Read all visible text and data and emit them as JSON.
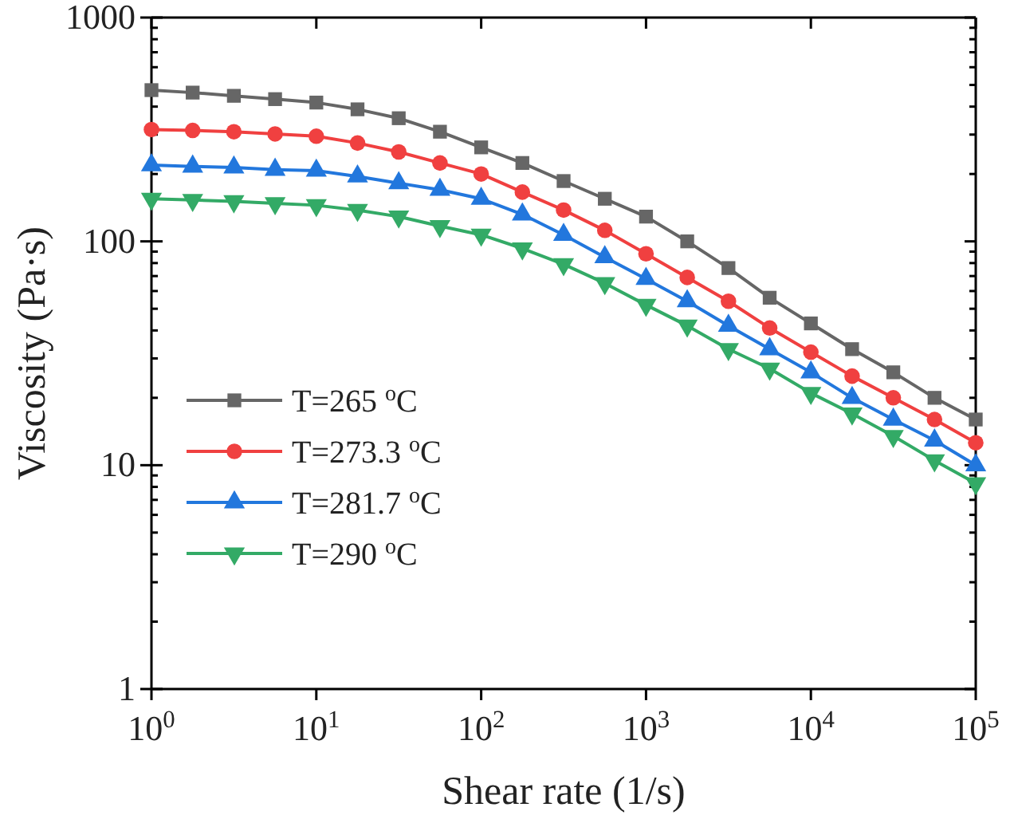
{
  "chart_data": {
    "type": "line",
    "xlabel": "Shear rate (1/s)",
    "ylabel": "Viscosity (Pa·s)",
    "log": "xy",
    "legend": "bottom left",
    "grid": false,
    "line_style": "solid",
    "x": [
      1,
      1.778,
      3.162,
      5.623,
      10,
      17.78,
      31.62,
      56.23,
      100,
      177.8,
      316.2,
      562.3,
      1000,
      1778,
      3162,
      5623,
      10000,
      17783,
      31623,
      56234,
      100000
    ],
    "xlim": [
      1,
      100000
    ],
    "ylim": [
      1,
      1000
    ],
    "xticks": [
      {
        "value": 1,
        "label": "10$^{0}$"
      },
      {
        "value": 10,
        "label": "10$^{1}$"
      },
      {
        "value": 100,
        "label": "10$^{2}$"
      },
      {
        "value": 1000,
        "label": "10$^{3}$"
      },
      {
        "value": 10000,
        "label": "10$^{4}$"
      },
      {
        "value": 100000,
        "label": "10$^{5}$"
      }
    ],
    "yticks": [
      1,
      {
        "value": 2,
        "label": null
      },
      {
        "value": 3,
        "label": null
      },
      {
        "value": 4,
        "label": null
      },
      {
        "value": 5,
        "label": null
      },
      {
        "value": 6,
        "label": null
      },
      {
        "value": 7,
        "label": null
      },
      {
        "value": 8,
        "label": null
      },
      {
        "value": 9,
        "label": null
      },
      10,
      {
        "value": 20,
        "label": null
      },
      {
        "value": 30,
        "label": null
      },
      {
        "value": 40,
        "label": null
      },
      {
        "value": 50,
        "label": null
      },
      {
        "value": 60,
        "label": null
      },
      {
        "value": 70,
        "label": null
      },
      {
        "value": 80,
        "label": null
      },
      {
        "value": 90,
        "label": null
      },
      100,
      {
        "value": 200,
        "label": null
      },
      {
        "value": 300,
        "label": null
      },
      {
        "value": 400,
        "label": null
      },
      {
        "value": 500,
        "label": null
      },
      {
        "value": 600,
        "label": null
      },
      {
        "value": 700,
        "label": null
      },
      {
        "value": 800,
        "label": null
      },
      {
        "value": 900,
        "label": null
      },
      1000
    ],
    "series": [
      {
        "name": "T=265 $^{o}$C",
        "color": "#666666",
        "marker": "square",
        "values": [
          474,
          462,
          447,
          432,
          417,
          389,
          355,
          309,
          263,
          224,
          186,
          155,
          129,
          100,
          76,
          56,
          43,
          33,
          26,
          20,
          16
        ]
      },
      {
        "name": "T=273.3 $^{o}$C",
        "color": "#f04040",
        "marker": "circle",
        "values": [
          316,
          313,
          309,
          302,
          295,
          275,
          251,
          224,
          200,
          166,
          138,
          112,
          88,
          69,
          54,
          41,
          32,
          25,
          20,
          16,
          12.6
        ]
      },
      {
        "name": "T=281.7 $^{o}$C",
        "color": "#2277dd",
        "marker": "triangle",
        "values": [
          219,
          216,
          214,
          209,
          207,
          195,
          182,
          170,
          155,
          132,
          107,
          85,
          68,
          54,
          42,
          33,
          26,
          20,
          16,
          12.9,
          10
        ]
      },
      {
        "name": "T=290 $^{o}$C",
        "color": "#33aa66",
        "marker": "triangle-down",
        "values": [
          155,
          153,
          151,
          148,
          145,
          138,
          129,
          117,
          107,
          93,
          79,
          65,
          52,
          42,
          33,
          27,
          21,
          17,
          13.5,
          10.5,
          8.3
        ]
      }
    ]
  }
}
